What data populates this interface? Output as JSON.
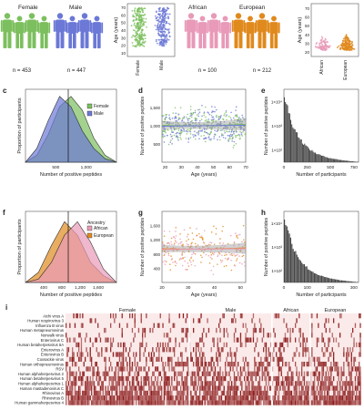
{
  "figure": {
    "panel_letters": [
      "c",
      "d",
      "e",
      "f",
      "g",
      "h",
      "i"
    ],
    "cohort_sex": {
      "female_label": "Female",
      "male_label": "Male",
      "female_n": "n = 453",
      "male_n": "n = 447"
    },
    "cohort_ancestry": {
      "african_label": "African",
      "european_label": "European",
      "african_n": "n = 100",
      "european_n": "n = 212"
    },
    "colors": {
      "female": "#7cbf5e",
      "male": "#6b78d6",
      "african": "#e89ab8",
      "european": "#e08a1e",
      "heat_light": "#fbeaea",
      "heat_dark": "#8b1a1a"
    }
  },
  "chart_data": [
    {
      "id": "age_sex",
      "type": "scatter",
      "ylabel": "Age (years)",
      "yticks": [
        10,
        20,
        30,
        40,
        50,
        60,
        70
      ],
      "ylim": [
        5,
        75
      ],
      "categories": [
        "Female",
        "Male"
      ]
    },
    {
      "id": "age_ancestry",
      "type": "scatter",
      "ylabel": "Age (years)",
      "yticks": [
        20,
        30,
        40,
        50,
        60,
        70
      ],
      "ylim": [
        15,
        75
      ],
      "categories": [
        "African",
        "European"
      ]
    },
    {
      "id": "c",
      "type": "area",
      "xlabel": "Number of positive peptides",
      "ylabel": "Proportion of participants",
      "xticks": [
        "500",
        "1,000"
      ],
      "legend": [
        "Female",
        "Male"
      ],
      "x": [
        300,
        450,
        600,
        750,
        900,
        1050,
        1200,
        1350,
        1500
      ],
      "series": [
        {
          "name": "Female",
          "values": [
            0.0,
            0.1,
            0.4,
            0.8,
            0.95,
            0.75,
            0.35,
            0.1,
            0.0
          ]
        },
        {
          "name": "Male",
          "values": [
            0.0,
            0.2,
            0.6,
            0.95,
            0.8,
            0.45,
            0.2,
            0.05,
            0.0
          ]
        }
      ]
    },
    {
      "id": "d",
      "type": "scatter",
      "xlabel": "Age (years)",
      "ylabel": "Number of positive peptides",
      "xticks": [
        20,
        30,
        40,
        50,
        60,
        70
      ],
      "yticks": [
        "500",
        "1,000",
        "1,500"
      ],
      "xlim": [
        18,
        70
      ],
      "ylim": [
        200,
        1700
      ]
    },
    {
      "id": "e",
      "type": "bar",
      "xlabel": "Number of participants",
      "ylabel": "Number of positive peptides",
      "xticks": [
        0,
        250,
        500,
        750
      ],
      "yticks": [
        "1×10²",
        "1×10³",
        "1×10⁴"
      ],
      "xlim": [
        0,
        800
      ],
      "log_y": true
    },
    {
      "id": "f",
      "type": "area",
      "xlabel": "Number of positive peptides",
      "ylabel": "Proportion of participants",
      "xticks": [
        "400",
        "800",
        "1,200",
        "1,600"
      ],
      "legend_title": "Ancestry",
      "legend": [
        "African",
        "European"
      ],
      "x": [
        300,
        500,
        700,
        900,
        1100,
        1300,
        1500,
        1700
      ],
      "series": [
        {
          "name": "European",
          "values": [
            0.0,
            0.15,
            0.55,
            0.9,
            0.7,
            0.3,
            0.1,
            0.0
          ]
        },
        {
          "name": "African",
          "values": [
            0.0,
            0.05,
            0.3,
            0.7,
            0.9,
            0.6,
            0.2,
            0.0
          ]
        }
      ]
    },
    {
      "id": "g",
      "type": "scatter",
      "xlabel": "Age (years)",
      "ylabel": "Number of positive peptides",
      "xticks": [
        20,
        30,
        40,
        50
      ],
      "yticks": [
        "400",
        "800",
        "1,200",
        "1,600"
      ],
      "xlim": [
        20,
        52
      ],
      "ylim": [
        200,
        1800
      ]
    },
    {
      "id": "h",
      "type": "bar",
      "xlabel": "Number of participants",
      "ylabel": "Number of positive peptides",
      "xticks": [
        0,
        100,
        200,
        300
      ],
      "yticks": [
        "1×10²",
        "1×10³",
        "1×10⁴"
      ],
      "xlim": [
        0,
        320
      ],
      "log_y": true
    },
    {
      "id": "i",
      "type": "heatmap",
      "columns": [
        "Female",
        "Male",
        "African",
        "European"
      ],
      "rows": [
        "Aichi virus A",
        "Human respirovirus 3",
        "Influenza B virus",
        "Human metapneumovirus",
        "Norwalk virus",
        "Enterovirus C",
        "Human betaherpesvirus 6A",
        "Enterovirus A",
        "Enterovirus B",
        "Coxsackie virus",
        "Human orthopneumovirus",
        "RSV",
        "Human alphaherpesvirus 2",
        "Human betaherpesvirus 5",
        "Human alphaherpesvirus 1",
        "Human mastadenovirus C",
        "Rhinovirus A",
        "Rhinovirus B",
        "Human gammaherpesvirus 4"
      ]
    }
  ]
}
